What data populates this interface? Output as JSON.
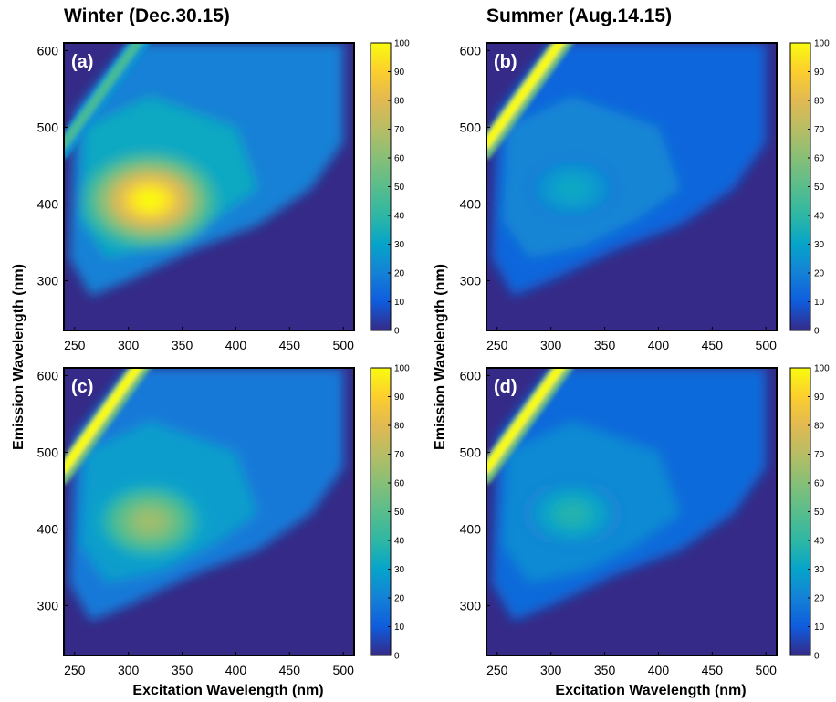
{
  "figure": {
    "column_titles": [
      "Winter (Dec.30.15)",
      "Summer (Aug.14.15)"
    ],
    "shared_xlabel": "Excitation Wavelength (nm)",
    "shared_ylabel": "Emission Wavelength (nm)"
  },
  "chart_data": [
    {
      "type": "heatmap",
      "panel_label": "(a)",
      "xlabel": "Excitation Wavelength (nm)",
      "ylabel": "Emission Wavelength (nm)",
      "xlim": [
        240,
        510
      ],
      "ylim": [
        235,
        610
      ],
      "xticks": [
        250,
        300,
        350,
        400,
        450,
        500
      ],
      "yticks": [
        300,
        400,
        500,
        600
      ],
      "colorbar": {
        "range": [
          0,
          100
        ],
        "ticks": [
          0,
          10,
          20,
          30,
          40,
          50,
          60,
          70,
          80,
          90,
          100
        ]
      },
      "peaks": [
        {
          "ex": 320,
          "em": 405,
          "value": 100
        }
      ],
      "rayleigh_band": {
        "max_value": 45
      }
    },
    {
      "type": "heatmap",
      "panel_label": "(b)",
      "xlabel": "Excitation Wavelength (nm)",
      "ylabel": "Emission Wavelength (nm)",
      "xlim": [
        240,
        510
      ],
      "ylim": [
        235,
        610
      ],
      "xticks": [
        250,
        300,
        350,
        400,
        450,
        500
      ],
      "yticks": [
        300,
        400,
        500,
        600
      ],
      "colorbar": {
        "range": [
          0,
          100
        ],
        "ticks": [
          0,
          10,
          20,
          30,
          40,
          50,
          60,
          70,
          80,
          90,
          100
        ]
      },
      "peaks": [
        {
          "ex": 320,
          "em": 420,
          "value": 32
        }
      ],
      "rayleigh_band": {
        "max_value": 100
      }
    },
    {
      "type": "heatmap",
      "panel_label": "(c)",
      "xlabel": "Excitation Wavelength (nm)",
      "ylabel": "Emission Wavelength (nm)",
      "xlim": [
        240,
        510
      ],
      "ylim": [
        235,
        610
      ],
      "xticks": [
        250,
        300,
        350,
        400,
        450,
        500
      ],
      "yticks": [
        300,
        400,
        500,
        600
      ],
      "colorbar": {
        "range": [
          0,
          100
        ],
        "ticks": [
          0,
          10,
          20,
          30,
          40,
          50,
          60,
          70,
          80,
          90,
          100
        ]
      },
      "peaks": [
        {
          "ex": 320,
          "em": 410,
          "value": 65
        }
      ],
      "rayleigh_band": {
        "max_value": 100
      }
    },
    {
      "type": "heatmap",
      "panel_label": "(d)",
      "xlabel": "Excitation Wavelength (nm)",
      "ylabel": "Emission Wavelength (nm)",
      "xlim": [
        240,
        510
      ],
      "ylim": [
        235,
        610
      ],
      "xticks": [
        250,
        300,
        350,
        400,
        450,
        500
      ],
      "yticks": [
        300,
        400,
        500,
        600
      ],
      "colorbar": {
        "range": [
          0,
          100
        ],
        "ticks": [
          0,
          10,
          20,
          30,
          40,
          50,
          60,
          70,
          80,
          90,
          100
        ]
      },
      "peaks": [
        {
          "ex": 320,
          "em": 420,
          "value": 38
        }
      ],
      "rayleigh_band": {
        "max_value": 100
      }
    }
  ]
}
